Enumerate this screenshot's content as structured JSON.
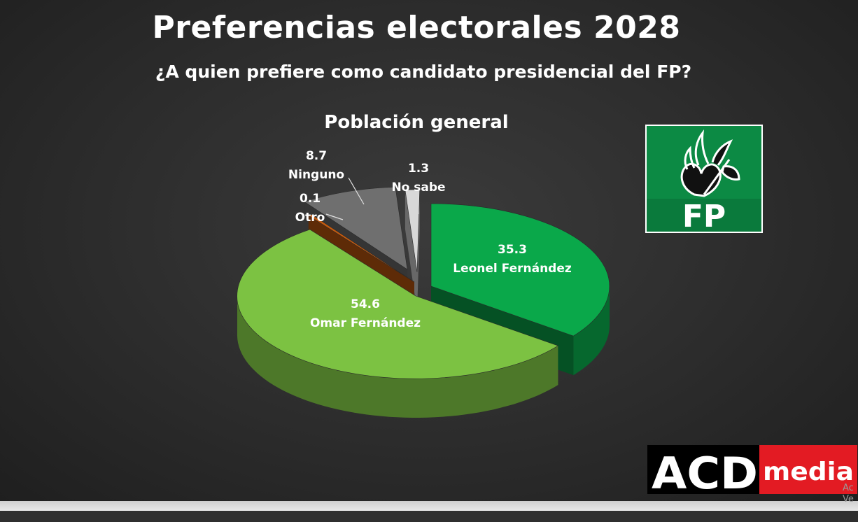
{
  "header": {
    "title": "Preferencias electorales 2028",
    "subtitle": "¿A quien prefiere como candidato presidencial del FP?"
  },
  "chart_data": {
    "type": "pie",
    "title": "Población general",
    "slices": [
      {
        "label": "Leonel Fernández",
        "value": 35.3,
        "value_text": "35.3",
        "color": "#0aa84a"
      },
      {
        "label": "Omar Fernández",
        "value": 54.6,
        "value_text": "54.6",
        "color": "#7cc242"
      },
      {
        "label": "Otro",
        "value": 0.1,
        "value_text": "0.1",
        "color": "#c45a0e"
      },
      {
        "label": "Ninguno",
        "value": 8.7,
        "value_text": "8.7",
        "color": "#6f6f6f"
      },
      {
        "label": "No sabe",
        "value": 1.3,
        "value_text": "1.3",
        "color": "#d8d8d8"
      }
    ],
    "style": "3d-exploded"
  },
  "logos": {
    "fp": {
      "text": "FP",
      "background": "#0a7a3c"
    },
    "acd": {
      "text_1": "ACD",
      "text_2": "media",
      "accent": "#e31b23"
    }
  },
  "watermark": {
    "line1": "Ac",
    "line2": "Ve"
  },
  "colors": {
    "background": "#2c2c2c",
    "text": "#ffffff"
  }
}
